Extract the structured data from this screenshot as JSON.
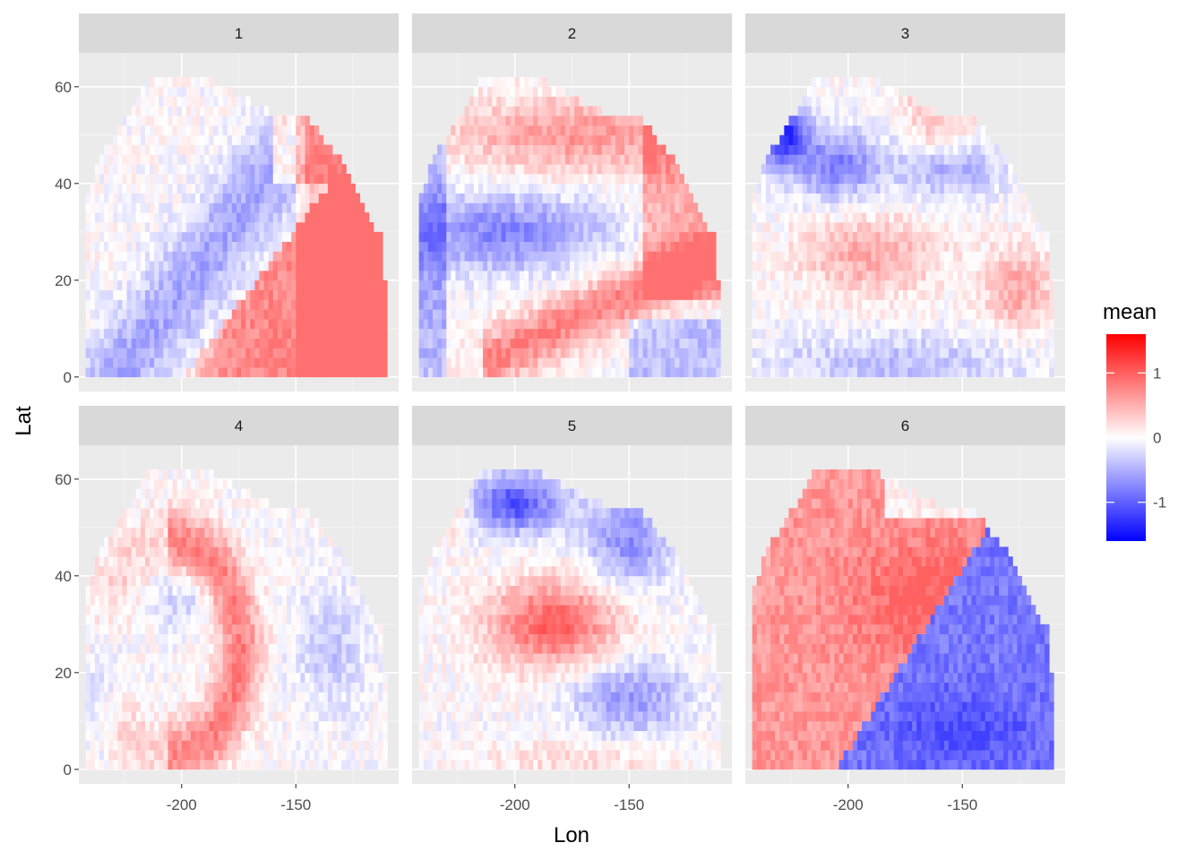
{
  "chart_data": {
    "type": "heatmap",
    "title": "",
    "xlabel": "Lon",
    "ylabel": "Lat",
    "x_ticks": [
      -200,
      -150
    ],
    "y_ticks": [
      0,
      20,
      40,
      60
    ],
    "xlim": [
      -245,
      -105
    ],
    "ylim": [
      -3,
      67
    ],
    "panels": [
      {
        "label": "1",
        "pattern": "Blue band from the west coast (lat 0-20) sweeping northeast to about -150 lon, 30 lat; warm (red) tropics east of -200 and warm northeast sector",
        "min_value": -0.9,
        "max_value": 0.9
      },
      {
        "label": "2",
        "pattern": "Warm band across mid-latitudes (45-55), cool band at 25-35 lat, warm tongue sweeping from lat 5 at -200 to -150; cool in the far southeast",
        "min_value": -1.0,
        "max_value": 0.9
      },
      {
        "label": "3",
        "pattern": "Strong cool anomaly in the northwest (about -230, 50 lat), warm spot at about -170, 63 lat; mixed noisy field elsewhere, cool near the equator",
        "min_value": -1.4,
        "max_value": 1.5
      },
      {
        "label": "4",
        "pattern": "Warm arc curving from about -170, 40 lat down to -190, 10 lat; weak cool patches in the west and northeast",
        "min_value": -0.8,
        "max_value": 1.0
      },
      {
        "label": "5",
        "pattern": "Warm core around -185, 30 lat surrounded by a cool ring; strong cool anomaly around -200, 55 lat",
        "min_value": -1.3,
        "max_value": 1.1
      },
      {
        "label": "6",
        "pattern": "Warm across the west and center (lat 10-55) with a peak near -165, 35 lat; strong cool in the southeast below a diagonal boundary",
        "min_value": -1.2,
        "max_value": 1.0
      }
    ],
    "legend": {
      "title": "mean",
      "position": "right",
      "ticks": [
        1,
        0,
        -1
      ],
      "range": [
        -1.6,
        1.6
      ],
      "low_color": "#0000FF",
      "mid_color": "#FFFFFF",
      "high_color": "#FF0000"
    },
    "grid": true,
    "panel_background": "#EBEBEB",
    "strip_background": "#D9D9D9"
  }
}
